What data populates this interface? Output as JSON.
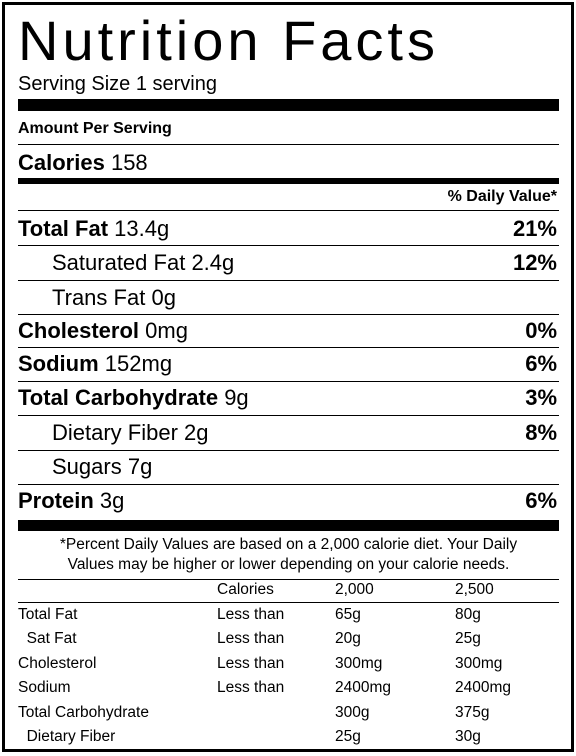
{
  "label": {
    "title": "Nutrition Facts",
    "serving": "Serving Size 1 serving",
    "amount_per_serving": "Amount Per Serving",
    "calories_label": "Calories",
    "calories_value": "158",
    "daily_value_header": "% Daily Value*"
  },
  "nutrients": [
    {
      "name": "Total Fat",
      "amount": "13.4g",
      "pct": "21%",
      "bold": true
    },
    {
      "name": "Saturated Fat",
      "amount": "2.4g",
      "pct": "12%",
      "bold": false
    },
    {
      "name": "Trans Fat",
      "amount": "0g",
      "pct": "",
      "bold": false
    },
    {
      "name": "Cholesterol",
      "amount": "0mg",
      "pct": "0%",
      "bold": true
    },
    {
      "name": "Sodium",
      "amount": "152mg",
      "pct": "6%",
      "bold": true
    },
    {
      "name": "Total Carbohydrate",
      "amount": "9g",
      "pct": "3%",
      "bold": true
    },
    {
      "name": "Dietary Fiber",
      "amount": "2g",
      "pct": "8%",
      "bold": false
    },
    {
      "name": "Sugars",
      "amount": "7g",
      "pct": "",
      "bold": false
    },
    {
      "name": "Protein",
      "amount": "3g",
      "pct": "6%",
      "bold": true
    }
  ],
  "footnote": {
    "line1": "*Percent Daily Values are based on a 2,000 calorie diet. Your Daily",
    "line2": "Values may be higher or lower depending on your calorie needs."
  },
  "reference_table": {
    "header": [
      "",
      "Calories",
      "2,000",
      "2,500"
    ],
    "rows": [
      [
        "Total Fat",
        "Less than",
        "65g",
        "80g"
      ],
      [
        "  Sat Fat",
        "Less than",
        "20g",
        "25g"
      ],
      [
        "Cholesterol",
        "Less than",
        "300mg",
        "300mg"
      ],
      [
        "Sodium",
        "Less than",
        "2400mg",
        "2400mg"
      ],
      [
        "Total Carbohydrate",
        "",
        "300g",
        "375g"
      ],
      [
        "  Dietary Fiber",
        "",
        "25g",
        "30g"
      ]
    ]
  }
}
